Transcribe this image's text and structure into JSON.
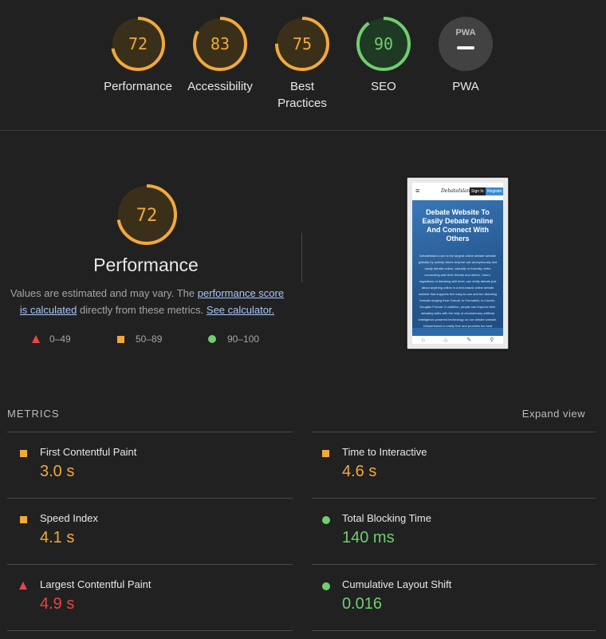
{
  "categories": [
    {
      "id": "performance",
      "score": 72,
      "label": "Performance",
      "status": "average"
    },
    {
      "id": "accessibility",
      "score": 83,
      "label": "Accessibility",
      "status": "average"
    },
    {
      "id": "best-practices",
      "score": 75,
      "label": "Best\nPractices",
      "status": "average"
    },
    {
      "id": "seo",
      "score": 90,
      "label": "SEO",
      "status": "pass"
    },
    {
      "id": "pwa",
      "score": null,
      "label": "PWA",
      "badge": "PWA",
      "status": "na"
    }
  ],
  "performance": {
    "score": "72",
    "title": "Performance",
    "desc_prefix": "Values are estimated and may vary. The ",
    "link_score": "performance score is calculated",
    "desc_middle": " directly from these metrics. ",
    "link_calc": "See calculator.",
    "legend": [
      {
        "shape": "triangle",
        "range": "0–49",
        "color": "#ec4444"
      },
      {
        "shape": "square",
        "range": "50–89",
        "color": "#f2a93b"
      },
      {
        "shape": "circle",
        "range": "90–100",
        "color": "#6fcf6f"
      }
    ]
  },
  "screenshot": {
    "logo": "DebateIsland",
    "signin": "Sign In",
    "register": "Register",
    "heading": "Debate Website To Easily Debate Online And Connect With Others",
    "body": "DebateIsland.com is the largest online debate website globally by activity where anyone can anonymously and easily debate online, casually or formally, while connecting with their friends and others. Users, regardless of debating skill level, can civilly debate just about anything online in a text-based online debate website that supports five easy-to-use and fun debating formats ranging from Casual, to Formalish, to Lincoln-Douglas Format. In addition, people can improve their debating skills with the help of revolutionary artificial intelligence-powered technology on our debate website. DebateIsland is totally free and provides the best"
  },
  "metrics": {
    "header": "METRICS",
    "expand": "Expand view",
    "items": [
      {
        "name": "First Contentful Paint",
        "value": "3.0 s",
        "status": "average"
      },
      {
        "name": "Time to Interactive",
        "value": "4.6 s",
        "status": "average"
      },
      {
        "name": "Speed Index",
        "value": "4.1 s",
        "status": "average"
      },
      {
        "name": "Total Blocking Time",
        "value": "140 ms",
        "status": "pass"
      },
      {
        "name": "Largest Contentful Paint",
        "value": "4.9 s",
        "status": "fail"
      },
      {
        "name": "Cumulative Layout Shift",
        "value": "0.016",
        "status": "pass"
      }
    ]
  },
  "colors": {
    "pass": "#6fcf6f",
    "average": "#f2a93b",
    "fail": "#ec4444",
    "background": "#212121"
  }
}
